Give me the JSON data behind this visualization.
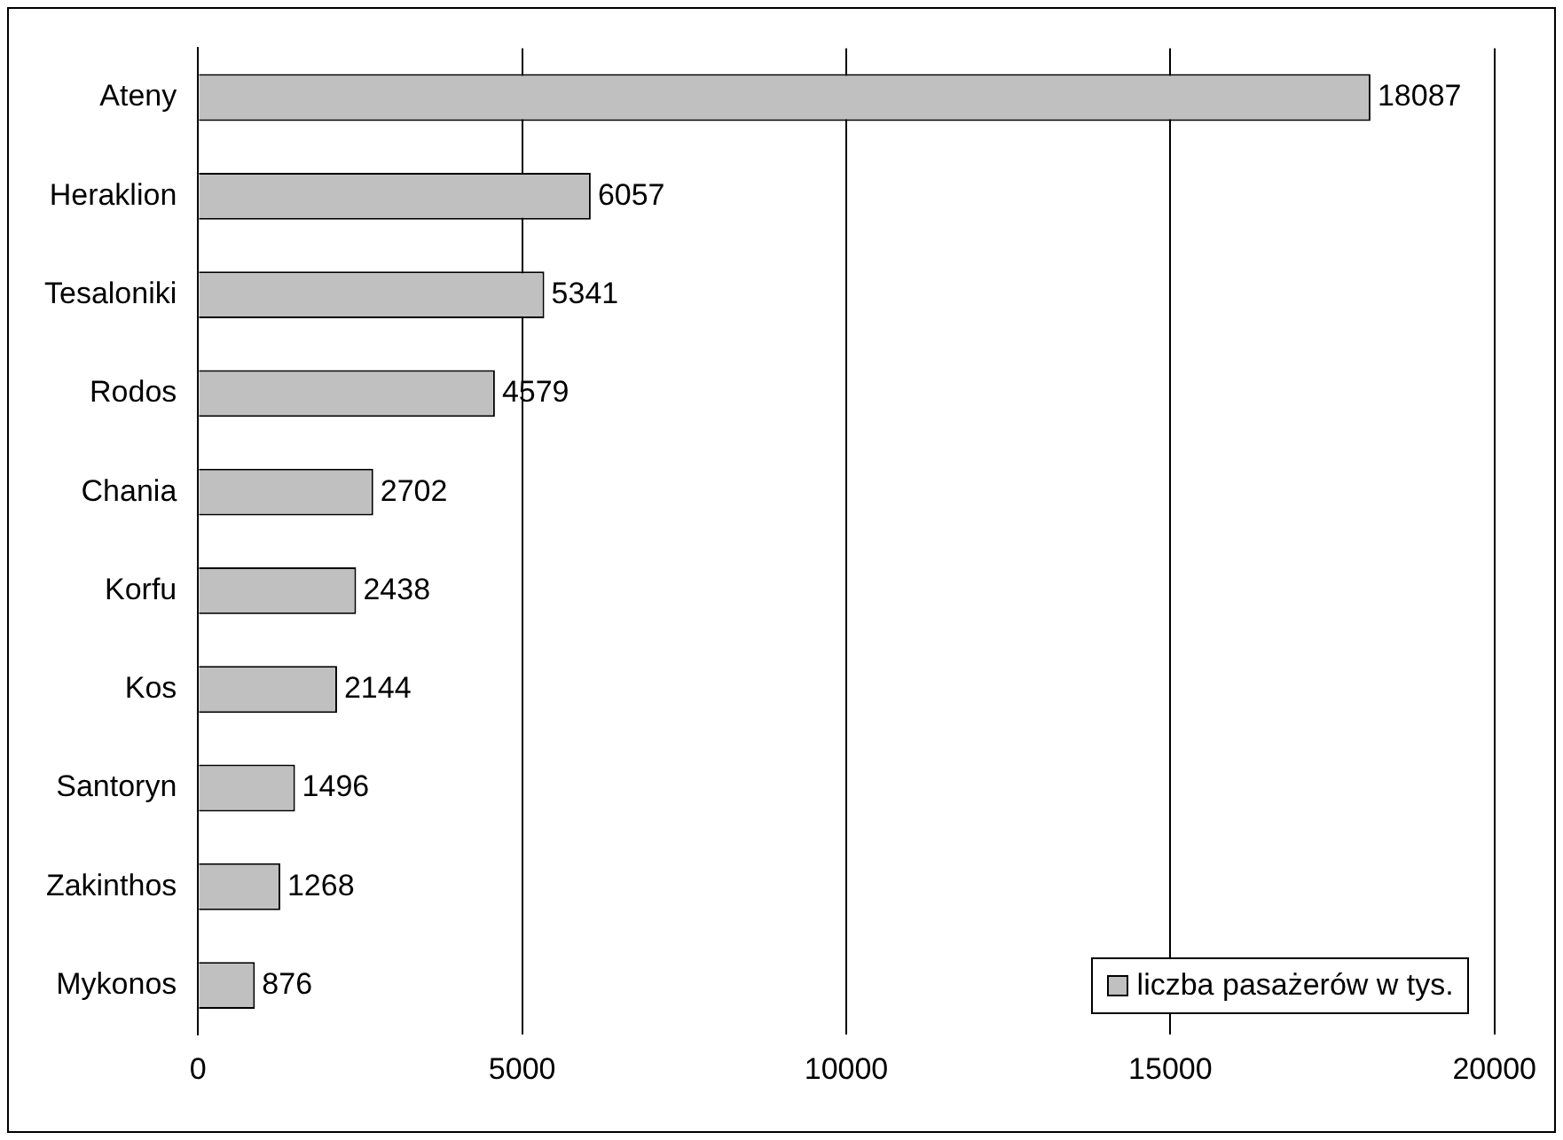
{
  "chart_data": {
    "type": "bar",
    "orientation": "horizontal",
    "categories": [
      "Ateny",
      "Heraklion",
      "Tesaloniki",
      "Rodos",
      "Chania",
      "Korfu",
      "Kos",
      "Santoryn",
      "Zakinthos",
      "Mykonos"
    ],
    "series": [
      {
        "name": "liczba pasażerów w tys.",
        "color": "#c0c0c0",
        "values": [
          18087,
          6057,
          5341,
          4579,
          2702,
          2438,
          2144,
          1496,
          1268,
          876
        ]
      }
    ],
    "xlim": [
      0,
      20000
    ],
    "xticks": [
      0,
      5000,
      10000,
      15000,
      20000
    ],
    "grid": "x",
    "legend": "bottom right",
    "data_labels": true
  }
}
